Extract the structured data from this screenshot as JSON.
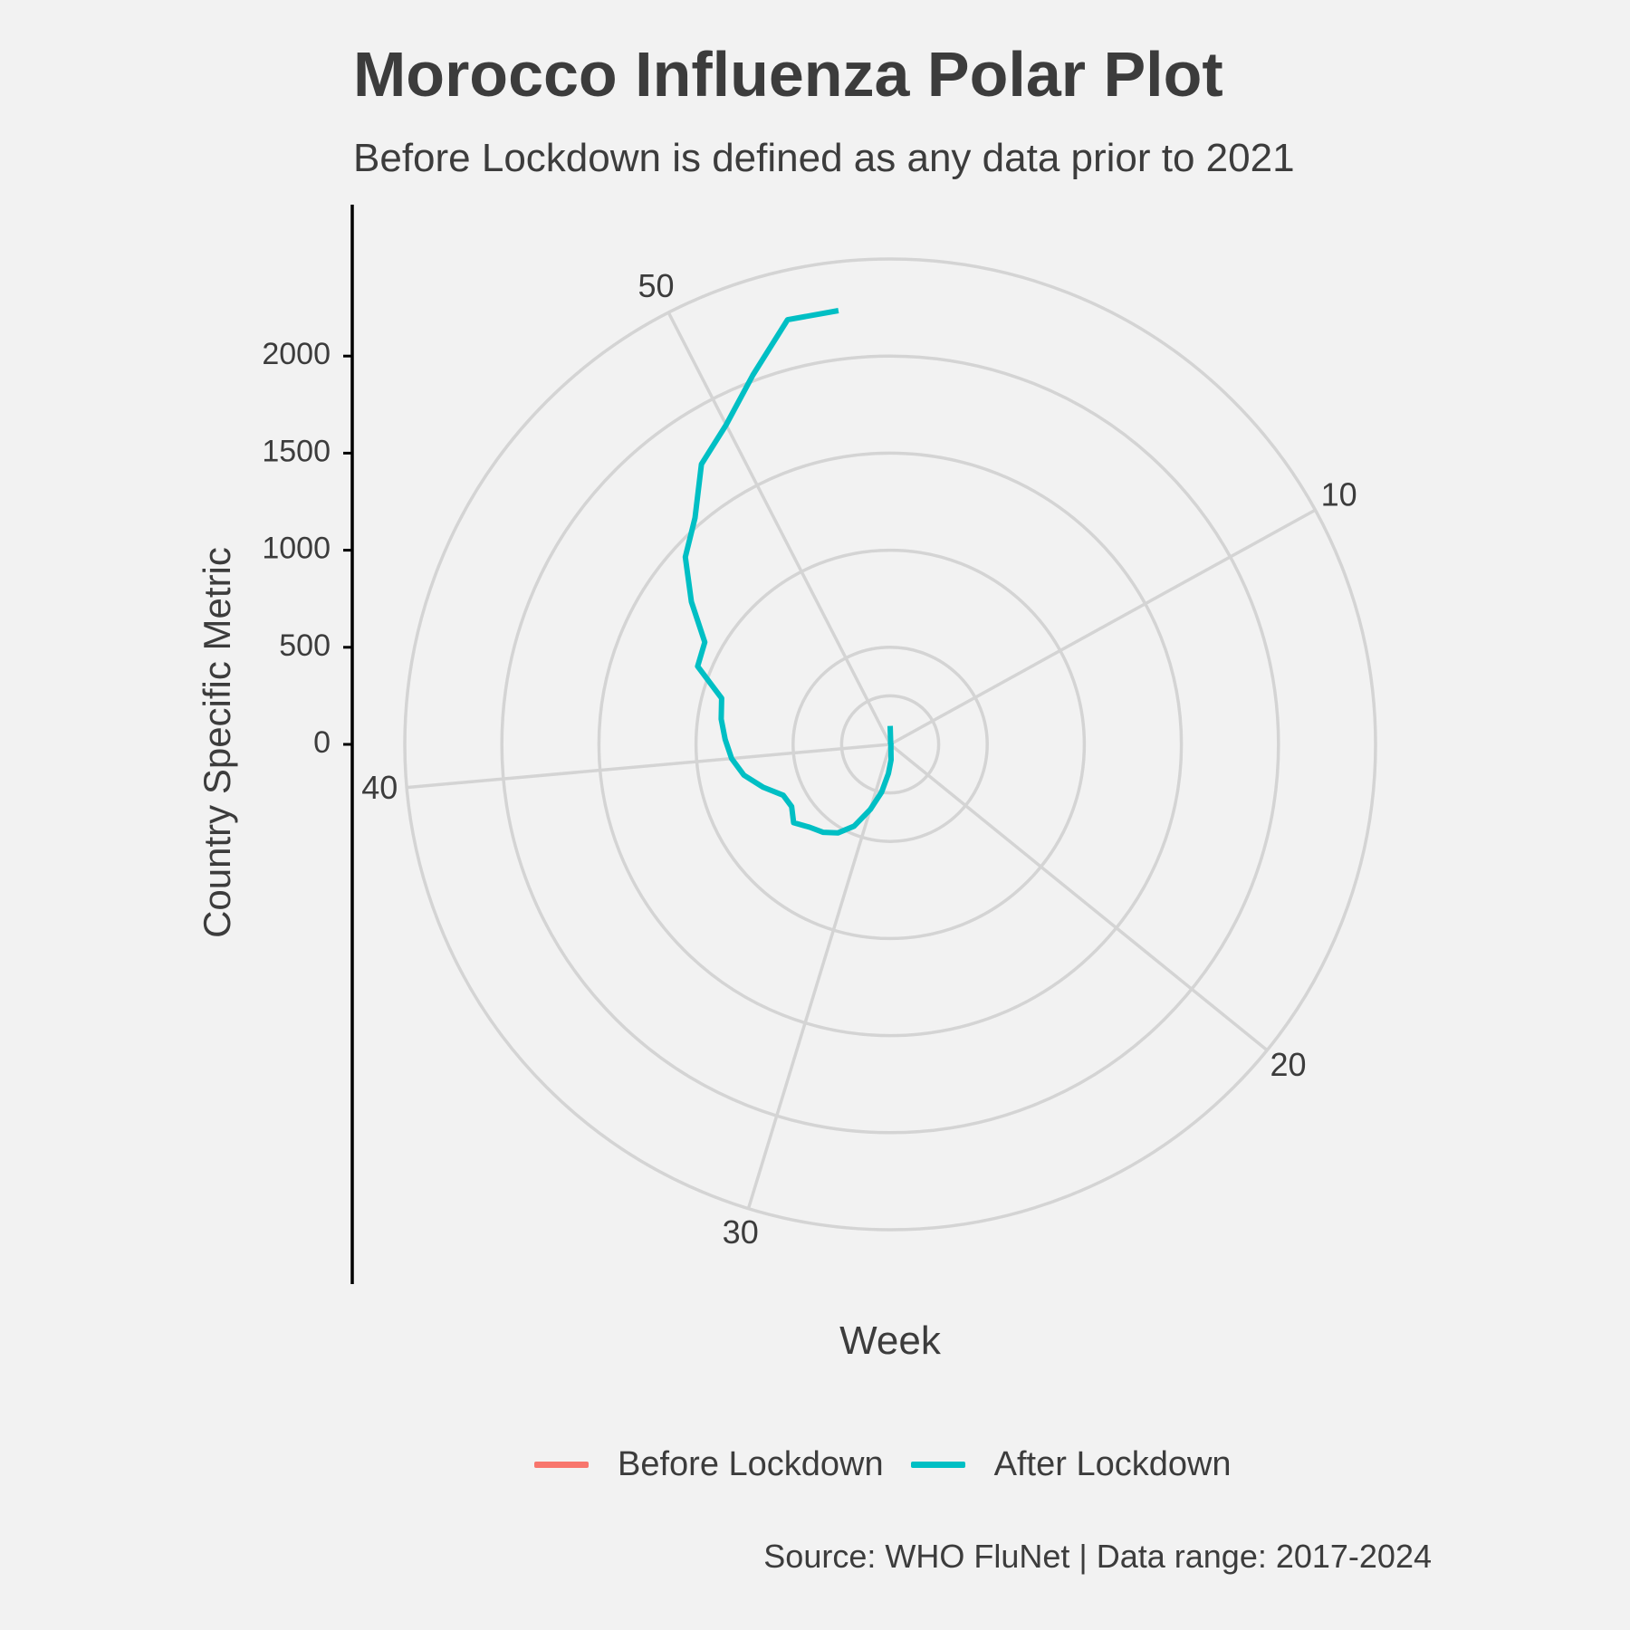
{
  "title": "Morocco Influenza Polar Plot",
  "subtitle": "Before Lockdown is defined as any data prior to 2021",
  "caption": "Source: WHO FluNet | Data range: 2017-2024",
  "chart_data": {
    "type": "line",
    "coord": "polar",
    "title": "Morocco Influenza Polar Plot",
    "subtitle": "Before Lockdown is defined as any data prior to 2021",
    "xlabel": "Week",
    "ylabel": "Country Specific Metric",
    "x_ticks": [
      10,
      20,
      30,
      40,
      50
    ],
    "x_range": [
      1,
      53
    ],
    "y_ticks": [
      0,
      500,
      1000,
      1500,
      2000
    ],
    "y_range": [
      0,
      2500
    ],
    "grid": true,
    "legend_position": "bottom",
    "series": [
      {
        "name": "Before Lockdown",
        "color": "#F8766D",
        "x": [],
        "y": []
      },
      {
        "name": "After Lockdown",
        "color": "#00BFC4",
        "x": [
          1,
          2,
          3,
          4,
          5,
          10,
          20,
          26,
          27,
          28,
          29,
          30,
          31,
          32,
          33,
          34,
          35,
          36,
          37,
          38,
          39,
          40,
          41,
          42,
          43,
          44,
          45,
          46,
          47,
          48,
          49,
          50,
          51,
          52,
          53
        ],
        "y": [
          95,
          20,
          10,
          5,
          5,
          5,
          5,
          20,
          80,
          150,
          250,
          350,
          460,
          530,
          570,
          595,
          640,
          600,
          610,
          690,
          770,
          820,
          850,
          880,
          900,
          1070,
          1090,
          1260,
          1430,
          1540,
          1740,
          1850,
          2030,
          2250,
          2250
        ]
      }
    ]
  }
}
